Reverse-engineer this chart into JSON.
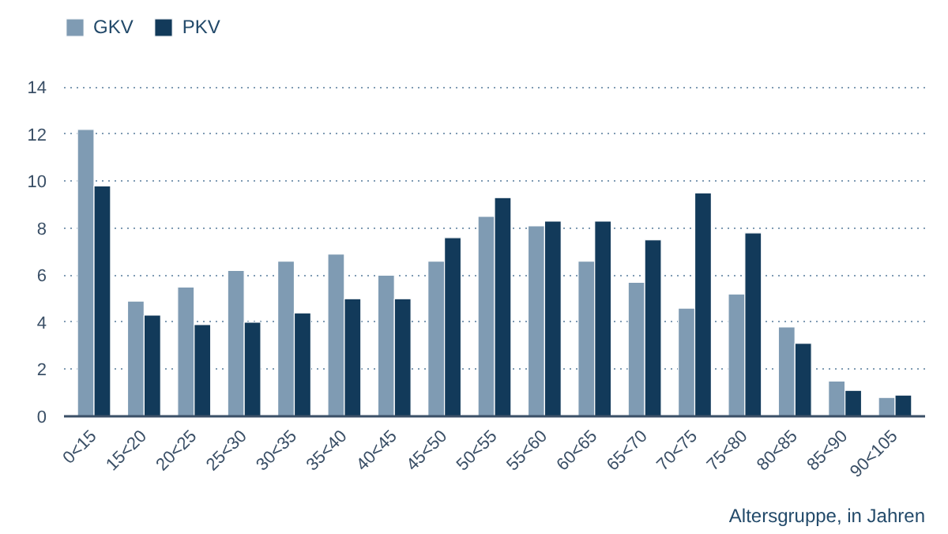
{
  "chart_data": {
    "type": "bar",
    "xlabel": "Altersgruppe, in Jahren",
    "categories": [
      "0<15",
      "15<20",
      "20<25",
      "25<30",
      "30<35",
      "35<40",
      "40<45",
      "45<50",
      "50<55",
      "55<60",
      "60<65",
      "65<70",
      "70<75",
      "75<80",
      "80<85",
      "85<90",
      "90<105"
    ],
    "series": [
      {
        "name": "GKV",
        "color": "#7f9bb3",
        "values": [
          12.2,
          4.9,
          5.5,
          6.2,
          6.6,
          6.9,
          6.0,
          6.6,
          8.5,
          8.1,
          6.6,
          5.7,
          4.6,
          5.2,
          3.8,
          1.5,
          0.8
        ]
      },
      {
        "name": "PKV",
        "color": "#123a5a",
        "values": [
          9.8,
          4.3,
          3.9,
          4.0,
          4.4,
          5.0,
          5.0,
          7.6,
          9.3,
          8.3,
          8.3,
          7.5,
          9.5,
          7.8,
          3.1,
          1.1,
          0.9
        ]
      }
    ],
    "ylim": [
      0,
      17
    ],
    "yticks": [
      0,
      2,
      4,
      6,
      8,
      10,
      12,
      14
    ],
    "grid": "y",
    "legend": "top left"
  }
}
